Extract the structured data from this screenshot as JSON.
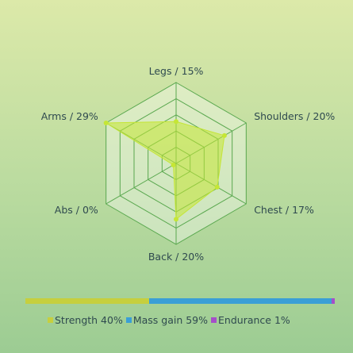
{
  "chart_data": {
    "type": "radar",
    "axes": [
      {
        "label": "Legs / 15%",
        "value": 15
      },
      {
        "label": "Shoulders / 20%",
        "value": 20
      },
      {
        "label": "Chest / 17%",
        "value": 17
      },
      {
        "label": "Back / 20%",
        "value": 20
      },
      {
        "label": "Abs / 0%",
        "value": 0
      },
      {
        "label": "Arms / 29%",
        "value": 29
      }
    ],
    "rlim": [
      0,
      29
    ],
    "rings": 5,
    "series_color": "#c5e635",
    "grid_color": "#5aa84f",
    "split": [
      {
        "label": "Strength 40%",
        "value": 40,
        "color": "#c6cf3e"
      },
      {
        "label": "Mass gain 59%",
        "value": 59,
        "color": "#3a9fd6"
      },
      {
        "label": "Endurance 1%",
        "value": 1,
        "color": "#a54fc9"
      }
    ]
  }
}
